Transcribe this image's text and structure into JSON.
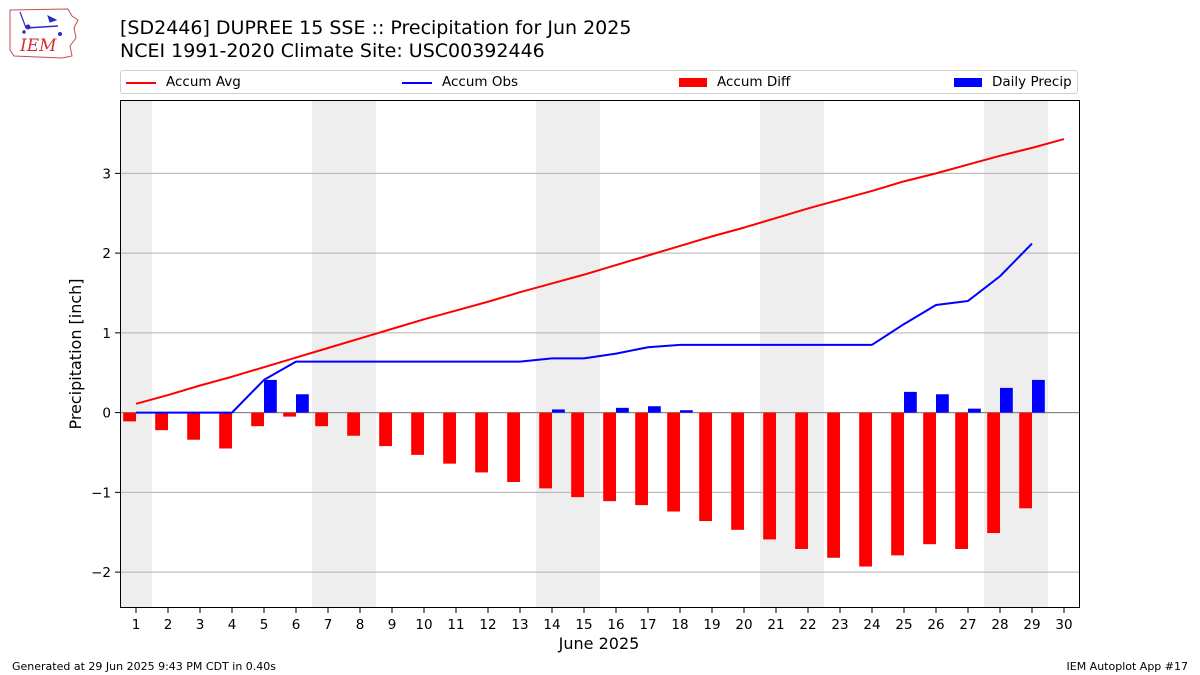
{
  "header": {
    "title_line1": "[SD2446] DUPREE 15 SSE :: Precipitation for Jun 2025",
    "title_line2": "NCEI 1991-2020 Climate Site: USC00392446",
    "logo_text": "IEM"
  },
  "legend": {
    "items": [
      {
        "label": "Accum Avg",
        "color": "#ff0000",
        "kind": "line"
      },
      {
        "label": "Accum Obs",
        "color": "#0000ff",
        "kind": "line"
      },
      {
        "label": "Accum Diff",
        "color": "#ff0000",
        "kind": "bar"
      },
      {
        "label": "Daily Precip",
        "color": "#0000ff",
        "kind": "bar"
      }
    ]
  },
  "footer": {
    "left": "Generated at 29 Jun 2025 9:43 PM CDT in 0.40s",
    "right": "IEM Autoplot App #17"
  },
  "chart_data": {
    "type": "bar",
    "title": "[SD2446] DUPREE 15 SSE :: Precipitation for Jun 2025",
    "subtitle": "NCEI 1991-2020 Climate Site: USC00392446",
    "xlabel": "June 2025",
    "ylabel": "Precipitation [inch]",
    "x": [
      1,
      2,
      3,
      4,
      5,
      6,
      7,
      8,
      9,
      10,
      11,
      12,
      13,
      14,
      15,
      16,
      17,
      18,
      19,
      20,
      21,
      22,
      23,
      24,
      25,
      26,
      27,
      28,
      29,
      30
    ],
    "x_ticks": [
      "1",
      "2",
      "3",
      "4",
      "5",
      "6",
      "7",
      "8",
      "9",
      "10",
      "11",
      "12",
      "13",
      "14",
      "15",
      "16",
      "17",
      "18",
      "19",
      "20",
      "21",
      "22",
      "23",
      "24",
      "25",
      "26",
      "27",
      "28",
      "29",
      "30"
    ],
    "xlim": [
      0.5,
      30.5
    ],
    "ylim": [
      -2.45,
      3.92
    ],
    "y_ticks": [
      -2,
      -1,
      0,
      1,
      2,
      3
    ],
    "y_tick_labels": [
      "−2",
      "−1",
      "0",
      "1",
      "2",
      "3"
    ],
    "grid": "horizontal",
    "weekend_shading": [
      [
        0.5,
        1.5
      ],
      [
        6.5,
        8.5
      ],
      [
        13.5,
        15.5
      ],
      [
        20.5,
        22.5
      ],
      [
        27.5,
        29.5
      ]
    ],
    "series": [
      {
        "name": "Accum Avg",
        "type": "line",
        "color": "#ff0000",
        "values": [
          0.11,
          0.22,
          0.34,
          0.45,
          0.57,
          0.69,
          0.81,
          0.93,
          1.05,
          1.17,
          1.28,
          1.39,
          1.51,
          1.62,
          1.73,
          1.85,
          1.97,
          2.09,
          2.21,
          2.32,
          2.44,
          2.56,
          2.67,
          2.78,
          2.9,
          3.0,
          3.11,
          3.22,
          3.32,
          3.43
        ]
      },
      {
        "name": "Accum Obs",
        "type": "line",
        "color": "#0000ff",
        "values": [
          0.0,
          0.0,
          0.0,
          0.0,
          0.41,
          0.64,
          0.64,
          0.64,
          0.64,
          0.64,
          0.64,
          0.64,
          0.64,
          0.68,
          0.68,
          0.74,
          0.82,
          0.85,
          0.85,
          0.85,
          0.85,
          0.85,
          0.85,
          0.85,
          1.11,
          1.35,
          1.4,
          1.71,
          2.12,
          null
        ]
      },
      {
        "name": "Accum Diff",
        "type": "bar",
        "color": "#ff0000",
        "offset": -0.2,
        "values": [
          -0.11,
          -0.22,
          -0.34,
          -0.45,
          -0.17,
          -0.05,
          -0.17,
          -0.29,
          -0.42,
          -0.53,
          -0.64,
          -0.75,
          -0.87,
          -0.95,
          -1.06,
          -1.11,
          -1.16,
          -1.24,
          -1.36,
          -1.47,
          -1.59,
          -1.71,
          -1.82,
          -1.93,
          -1.79,
          -1.65,
          -1.71,
          -1.51,
          -1.2,
          null
        ]
      },
      {
        "name": "Daily Precip",
        "type": "bar",
        "color": "#0000ff",
        "offset": 0.2,
        "values": [
          0,
          0,
          0,
          0,
          0.41,
          0.23,
          0,
          0,
          0,
          0,
          0,
          0,
          0,
          0.04,
          0,
          0.06,
          0.08,
          0.03,
          0,
          0,
          0,
          0,
          0,
          0,
          0.26,
          0.23,
          0.05,
          0.31,
          0.41,
          null
        ]
      }
    ]
  }
}
